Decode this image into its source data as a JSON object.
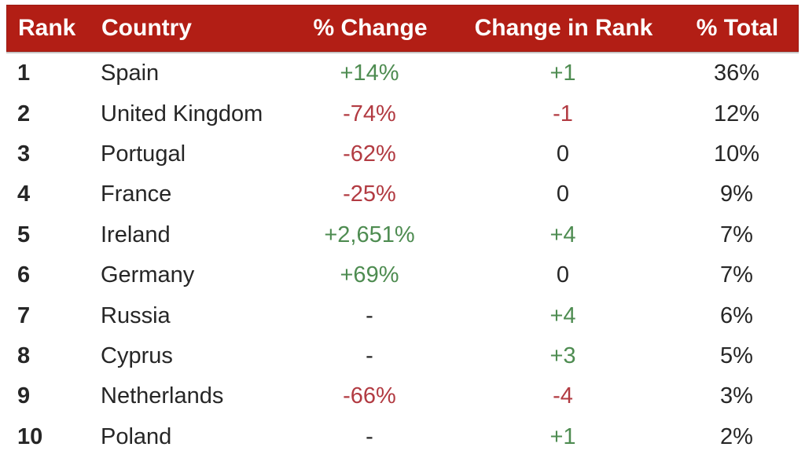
{
  "colors": {
    "header_bg": "#B21E15",
    "header_text": "#FFFFFF",
    "positive": "#4E8C51",
    "negative": "#B23B42",
    "neutral": "#262626"
  },
  "table": {
    "columns": [
      {
        "label": "Rank"
      },
      {
        "label": "Country"
      },
      {
        "label": "% Change"
      },
      {
        "label": "Change in Rank"
      },
      {
        "label": "% Total"
      }
    ],
    "rows": [
      {
        "rank": "1",
        "country": "Spain",
        "pct_change": "+14%",
        "pct_change_tone": "pos",
        "rank_change": "+1",
        "rank_change_tone": "pos",
        "pct_total": "36%"
      },
      {
        "rank": "2",
        "country": "United Kingdom",
        "pct_change": "-74%",
        "pct_change_tone": "neg",
        "rank_change": "-1",
        "rank_change_tone": "neg",
        "pct_total": "12%"
      },
      {
        "rank": "3",
        "country": "Portugal",
        "pct_change": "-62%",
        "pct_change_tone": "neg",
        "rank_change": "0",
        "rank_change_tone": "zero",
        "pct_total": "10%"
      },
      {
        "rank": "4",
        "country": "France",
        "pct_change": "-25%",
        "pct_change_tone": "neg",
        "rank_change": "0",
        "rank_change_tone": "zero",
        "pct_total": "9%"
      },
      {
        "rank": "5",
        "country": "Ireland",
        "pct_change": "+2,651%",
        "pct_change_tone": "pos",
        "rank_change": "+4",
        "rank_change_tone": "pos",
        "pct_total": "7%"
      },
      {
        "rank": "6",
        "country": "Germany",
        "pct_change": "+69%",
        "pct_change_tone": "pos",
        "rank_change": "0",
        "rank_change_tone": "zero",
        "pct_total": "7%"
      },
      {
        "rank": "7",
        "country": "Russia",
        "pct_change": "-",
        "pct_change_tone": "zero",
        "rank_change": "+4",
        "rank_change_tone": "pos",
        "pct_total": "6%"
      },
      {
        "rank": "8",
        "country": "Cyprus",
        "pct_change": "-",
        "pct_change_tone": "zero",
        "rank_change": "+3",
        "rank_change_tone": "pos",
        "pct_total": "5%"
      },
      {
        "rank": "9",
        "country": "Netherlands",
        "pct_change": "-66%",
        "pct_change_tone": "neg",
        "rank_change": "-4",
        "rank_change_tone": "neg",
        "pct_total": "3%"
      },
      {
        "rank": "10",
        "country": "Poland",
        "pct_change": "-",
        "pct_change_tone": "zero",
        "rank_change": "+1",
        "rank_change_tone": "pos",
        "pct_total": "2%"
      }
    ]
  },
  "chart_data": {
    "type": "table",
    "columns": [
      "Rank",
      "Country",
      "% Change",
      "Change in Rank",
      "% Total"
    ],
    "rows": [
      [
        1,
        "Spain",
        "+14%",
        "+1",
        "36%"
      ],
      [
        2,
        "United Kingdom",
        "-74%",
        "-1",
        "12%"
      ],
      [
        3,
        "Portugal",
        "-62%",
        "0",
        "10%"
      ],
      [
        4,
        "France",
        "-25%",
        "0",
        "9%"
      ],
      [
        5,
        "Ireland",
        "+2,651%",
        "+4",
        "7%"
      ],
      [
        6,
        "Germany",
        "+69%",
        "0",
        "7%"
      ],
      [
        7,
        "Russia",
        "-",
        "+4",
        "6%"
      ],
      [
        8,
        "Cyprus",
        "-",
        "+3",
        "5%"
      ],
      [
        9,
        "Netherlands",
        "-66%",
        "-4",
        "3%"
      ],
      [
        10,
        "Poland",
        "-",
        "+1",
        "2%"
      ]
    ]
  }
}
